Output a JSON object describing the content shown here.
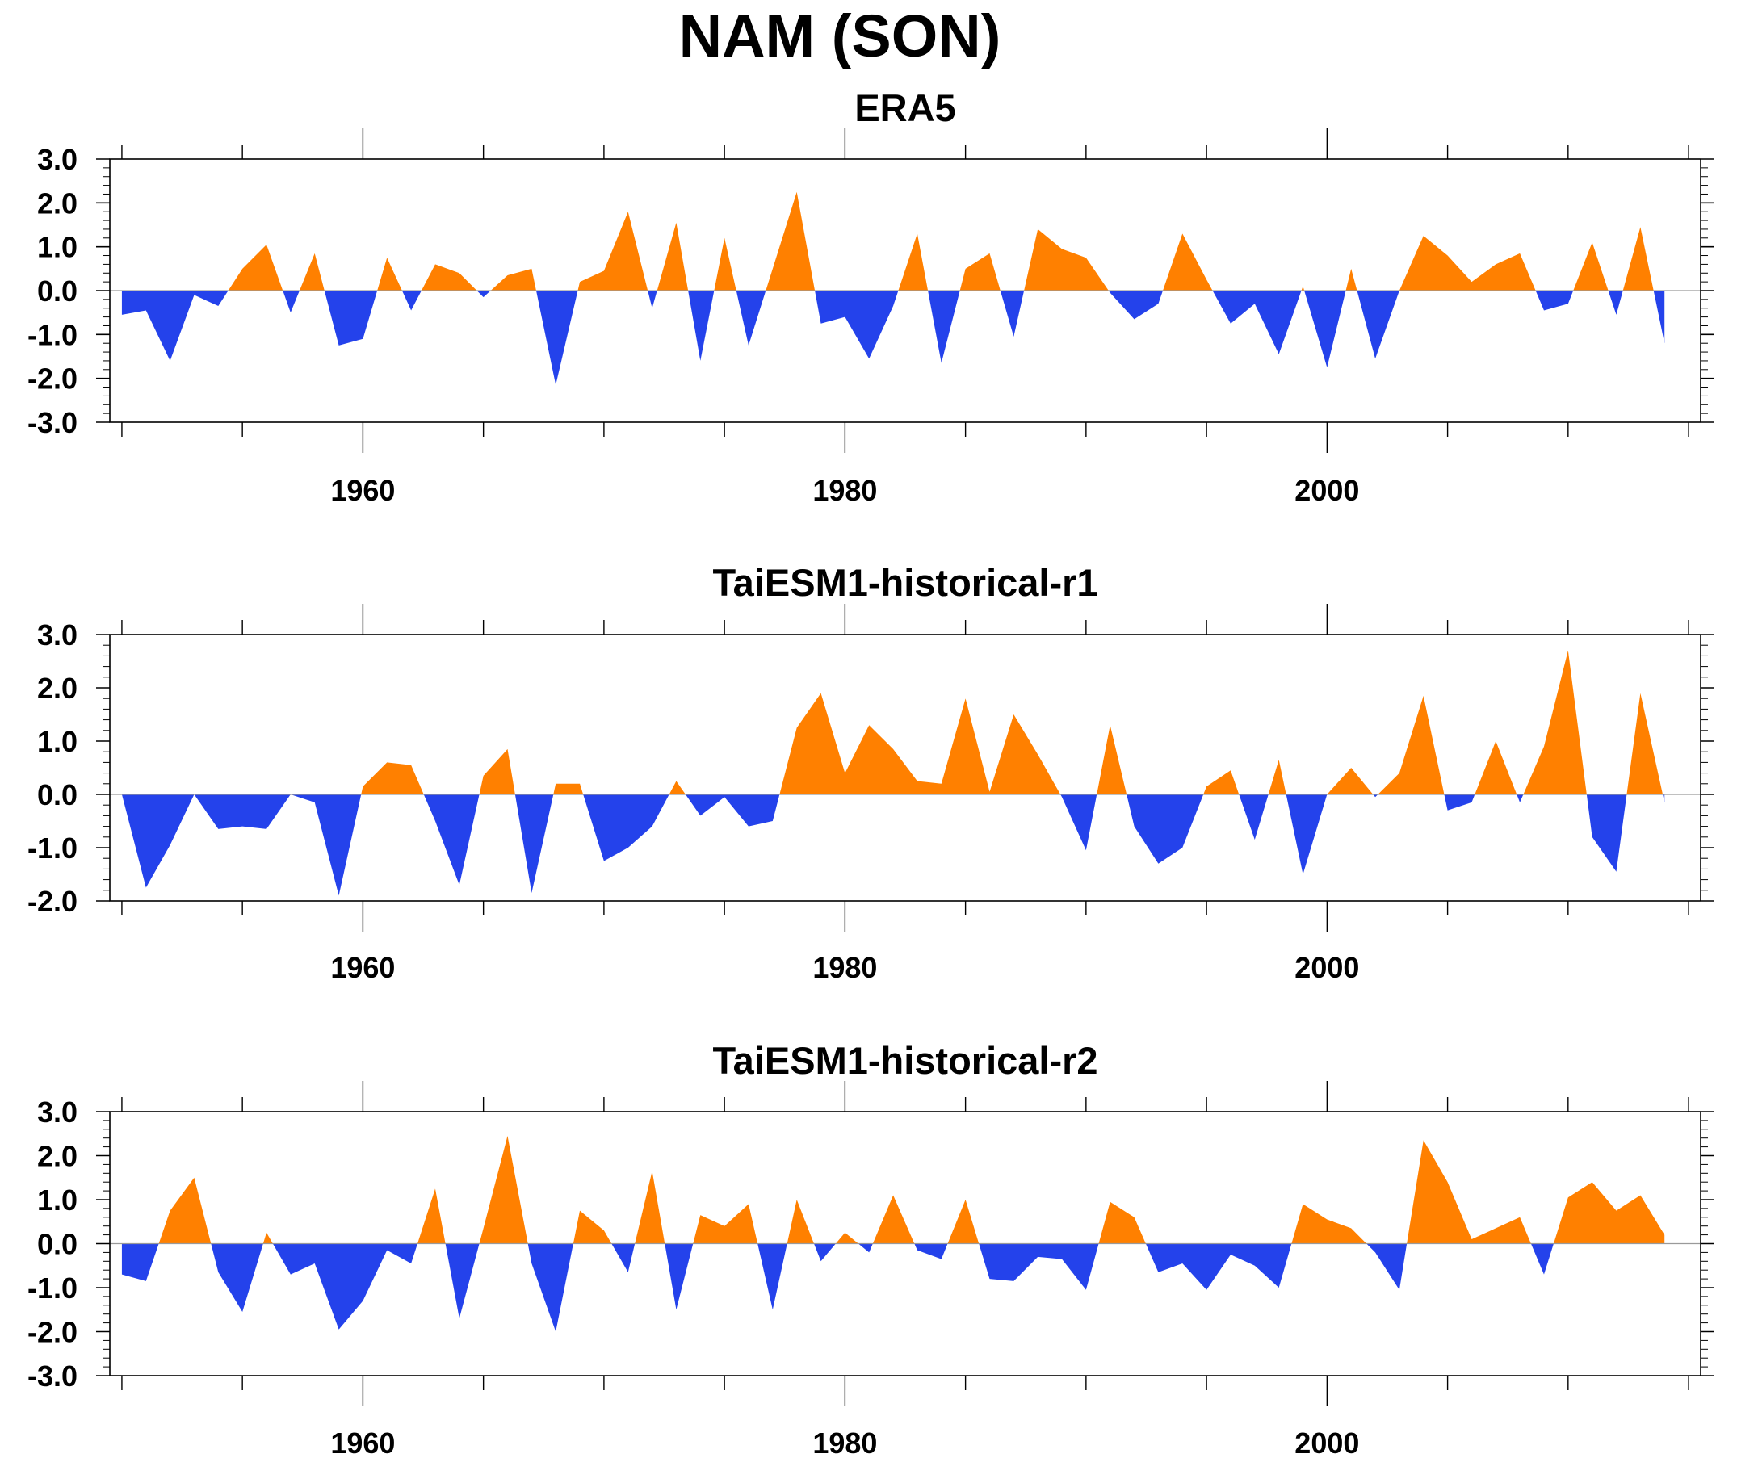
{
  "title": "NAM (SON)",
  "colors": {
    "positive": "#FF8000",
    "negative": "#2442EB",
    "axis": "#000000"
  },
  "chart_data": [
    {
      "type": "area",
      "title": "ERA5",
      "xlabel": "",
      "ylabel": "",
      "xlim": [
        1949.5,
        2015.5
      ],
      "ylim": [
        -3.0,
        3.0
      ],
      "yticks": [
        "-3.0",
        "-2.0",
        "-1.0",
        "0.0",
        "1.0",
        "2.0",
        "3.0"
      ],
      "xticks": [
        "1960",
        "1980",
        "2000"
      ],
      "grid": false,
      "x_start": 1950,
      "values": [
        -0.55,
        -0.45,
        -1.6,
        -0.1,
        -0.35,
        0.5,
        1.05,
        -0.5,
        0.85,
        -1.25,
        -1.1,
        0.75,
        -0.45,
        0.6,
        0.4,
        -0.15,
        0.35,
        0.5,
        -2.15,
        0.2,
        0.45,
        1.8,
        -0.4,
        1.55,
        -1.6,
        1.2,
        -1.25,
        0.5,
        2.25,
        -0.75,
        -0.6,
        -1.55,
        -0.35,
        1.3,
        -1.65,
        0.5,
        0.85,
        -1.05,
        1.4,
        0.95,
        0.75,
        -0.05,
        -0.65,
        -0.3,
        1.3,
        0.25,
        -0.75,
        -0.3,
        -1.45,
        0.1,
        -1.75,
        0.5,
        -1.55,
        0.0,
        1.25,
        0.8,
        0.2,
        0.6,
        0.85,
        -0.45,
        -0.3,
        1.1,
        -0.55,
        1.45,
        -1.2
      ]
    },
    {
      "type": "area",
      "title": "TaiESM1-historical-r1",
      "xlabel": "",
      "ylabel": "",
      "xlim": [
        1949.5,
        2015.5
      ],
      "ylim": [
        -2.0,
        3.0
      ],
      "yticks": [
        "-2.0",
        "-1.0",
        "0.0",
        "1.0",
        "2.0",
        "3.0"
      ],
      "xticks": [
        "1960",
        "1980",
        "2000"
      ],
      "grid": false,
      "x_start": 1950,
      "values": [
        0.0,
        -1.75,
        -0.95,
        0.0,
        -0.65,
        -0.6,
        -0.65,
        0.0,
        -0.15,
        -1.9,
        0.15,
        0.6,
        0.55,
        -0.5,
        -1.7,
        0.35,
        0.85,
        -1.85,
        0.2,
        0.2,
        -1.25,
        -1.0,
        -0.6,
        0.25,
        -0.4,
        -0.05,
        -0.6,
        -0.5,
        1.25,
        1.9,
        0.4,
        1.3,
        0.85,
        0.25,
        0.2,
        1.8,
        0.05,
        1.5,
        0.75,
        -0.05,
        -1.05,
        1.3,
        -0.6,
        -1.3,
        -1.0,
        0.15,
        0.45,
        -0.85,
        0.65,
        -1.5,
        0.0,
        0.5,
        -0.05,
        0.4,
        1.85,
        -0.3,
        -0.15,
        1.0,
        -0.15,
        0.9,
        2.7,
        -0.8,
        -1.45,
        1.9,
        -0.15
      ]
    },
    {
      "type": "area",
      "title": "TaiESM1-historical-r2",
      "xlabel": "",
      "ylabel": "",
      "xlim": [
        1949.5,
        2015.5
      ],
      "ylim": [
        -3.0,
        3.0
      ],
      "yticks": [
        "-3.0",
        "-2.0",
        "-1.0",
        "0.0",
        "1.0",
        "2.0",
        "3.0"
      ],
      "xticks": [
        "1960",
        "1980",
        "2000"
      ],
      "grid": false,
      "x_start": 1950,
      "values": [
        -0.7,
        -0.85,
        0.75,
        1.5,
        -0.65,
        -1.55,
        0.25,
        -0.7,
        -0.45,
        -1.95,
        -1.3,
        -0.15,
        -0.45,
        1.25,
        -1.7,
        0.35,
        2.45,
        -0.45,
        -2.0,
        0.75,
        0.3,
        -0.65,
        1.65,
        -1.5,
        0.65,
        0.4,
        0.9,
        -1.5,
        1.0,
        -0.4,
        0.25,
        -0.2,
        1.1,
        -0.15,
        -0.35,
        1.0,
        -0.8,
        -0.85,
        -0.3,
        -0.35,
        -1.05,
        0.95,
        0.6,
        -0.65,
        -0.45,
        -1.05,
        -0.25,
        -0.5,
        -1.0,
        0.9,
        0.55,
        0.35,
        -0.2,
        -1.05,
        2.35,
        1.4,
        0.1,
        0.35,
        0.6,
        -0.7,
        1.05,
        1.4,
        0.75,
        1.1,
        0.2
      ]
    }
  ]
}
